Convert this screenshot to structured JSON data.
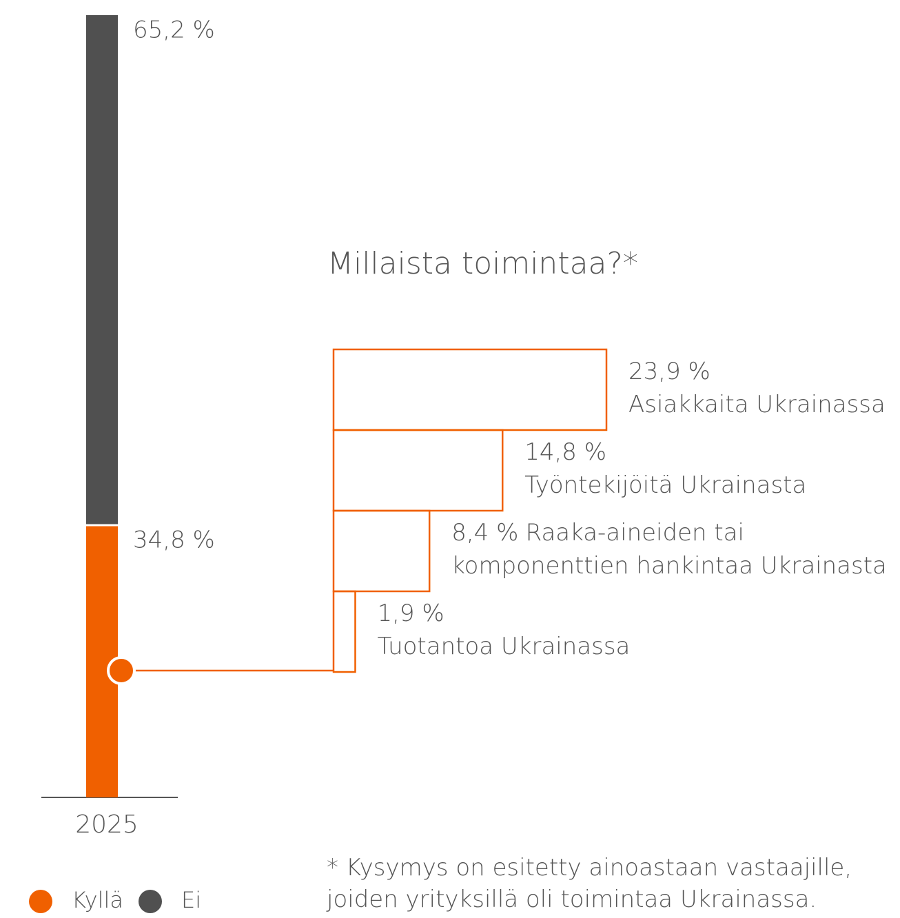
{
  "chart_data": [
    {
      "type": "stacked_bar",
      "categories": [
        "2025"
      ],
      "series": [
        {
          "name": "Kyllä",
          "color": "#f06000",
          "values": [
            34.8
          ],
          "value_labels": [
            "34,8 %"
          ]
        },
        {
          "name": "Ei",
          "color": "#505050",
          "values": [
            65.2
          ],
          "value_labels": [
            "65,2 %"
          ]
        }
      ]
    },
    {
      "type": "hbar",
      "title": "Millaista toimintaa?*",
      "categories": [
        "Asiakkaita Ukrainassa",
        "Työntekijöitä Ukrainasta",
        "Raaka-aineiden tai komponenttien hankintaa Ukrainasta",
        "Tuotantoa Ukrainassa"
      ],
      "values": [
        23.9,
        14.8,
        8.4,
        1.9
      ],
      "value_labels": [
        "23,9 %",
        "14,8 %",
        "8,4 %",
        "1,9 %"
      ],
      "color": "#f06000",
      "note": "* Kysymys on esitetty ainoastaan vastaajille, joiden yrityksillä oli toimintaa Ukrainassa."
    }
  ]
}
